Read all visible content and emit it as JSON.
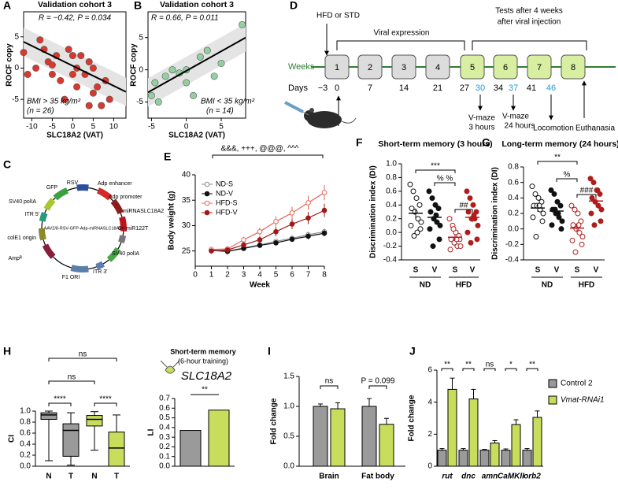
{
  "panel_labels": [
    "A",
    "B",
    "C",
    "D",
    "E",
    "F",
    "G",
    "H",
    "I",
    "J"
  ],
  "timeline": {
    "treatment": "HFD or STD",
    "phase1": "Viral expression",
    "phase2": [
      "Tests after 4 weeks",
      "after viral injection"
    ],
    "axis_label": "Weeks",
    "weeks": [
      "1",
      "2",
      "3",
      "4",
      "5",
      "6",
      "7",
      "8"
    ],
    "days_label": "Days",
    "days": [
      "−3",
      "0",
      "7",
      "14",
      "21",
      "27",
      "30",
      "34",
      "37",
      "41",
      "46"
    ],
    "events": [
      [
        "V-maze",
        "3 hours"
      ],
      [
        "V-maze",
        "24 hours"
      ],
      [
        "Locomotion"
      ],
      [
        "Euthanasia"
      ]
    ]
  },
  "plasmid": {
    "name": "AAV2/8-RSV-GFP-Adp-miRNASLC18A2",
    "elements": [
      "RSV",
      "GFP",
      "Adp enhancer",
      "Adp promoter",
      "miRNASLC18A2",
      "8× miR122T",
      "SV40 polIA",
      "ITR 3′",
      "F1 ORI",
      "Ampᴿ",
      "colE1 origin",
      "ITR 5′",
      "SV40 polIA"
    ]
  },
  "chart_data": [
    {
      "type": "scatter",
      "title": "Validation cohort 3",
      "annotations": [
        "R = −0.42, P = 0.034",
        "BMI > 35 kg/m²",
        "(n = 26)"
      ],
      "x_label": "SLC18A2 (VAT)",
      "y_label": "ROCF copy",
      "color": "#d9382e",
      "x": [
        -12,
        -11,
        -9,
        -8,
        -7,
        -6,
        -5,
        -5,
        -4,
        -3,
        -2,
        -1,
        0,
        0,
        1,
        1,
        2,
        3,
        4,
        4,
        5,
        5,
        6,
        7,
        8,
        9
      ],
      "values": [
        2.5,
        -1,
        0,
        4.5,
        3,
        1,
        -1,
        0.5,
        2,
        -2,
        -5,
        3,
        2,
        -1,
        0,
        -3,
        2,
        -1,
        1,
        -6,
        0,
        -4,
        -3,
        -6,
        -2,
        -5
      ],
      "trend": {
        "x": [
          -12,
          13
        ],
        "y": [
          4.2,
          -3.8
        ]
      },
      "xlim": [
        -12,
        13
      ],
      "ylim": [
        -8,
        9
      ],
      "xticks": [
        -10,
        -5,
        0,
        5,
        10
      ],
      "yticks": [
        -5,
        0,
        5
      ]
    },
    {
      "type": "scatter",
      "title": "Validation cohort 3",
      "annotations": [
        "R = 0.66, P = 0.011",
        "BMI < 35 kg/m²",
        "(n = 14)"
      ],
      "x_label": "SLC18A2 (VAT)",
      "y_label": "ROCF copy",
      "color": "#93cfa0",
      "x": [
        -5,
        -4.5,
        -4,
        -3,
        -2,
        -1,
        0,
        0,
        1,
        2,
        3,
        4,
        5,
        8
      ],
      "values": [
        -4,
        -2,
        -5,
        -1,
        0,
        -0.5,
        0,
        -2,
        -4,
        2,
        3,
        -1,
        1,
        7
      ],
      "trend": {
        "x": [
          -5.5,
          8.5
        ],
        "y": [
          -3.5,
          5
        ]
      },
      "xlim": [
        -5.5,
        8.5
      ],
      "ylim": [
        -7.5,
        9
      ],
      "xticks": [
        -5,
        0,
        5
      ],
      "yticks": [
        -5,
        0,
        5
      ]
    },
    {
      "type": "line",
      "annotations": [
        "&&&, +++, @@@, ^^^"
      ],
      "x_label": "Week",
      "y_label": "Body weight (g)",
      "x": [
        1,
        2,
        3,
        4,
        5,
        6,
        7,
        8
      ],
      "legend": "upper-left",
      "series": [
        {
          "name": "ND-S",
          "color": "#8a8a8a",
          "filled": false,
          "values": [
            25.2,
            25.0,
            25.6,
            26.2,
            26.9,
            27.5,
            28.2,
            28.8
          ],
          "errors": [
            0.3,
            0.3,
            0.4,
            0.4,
            0.5,
            0.5,
            0.6,
            0.6
          ]
        },
        {
          "name": "ND-V",
          "color": "#111111",
          "filled": true,
          "values": [
            25.1,
            24.9,
            25.5,
            26.1,
            26.6,
            27.3,
            27.9,
            28.5
          ],
          "errors": [
            0.3,
            0.3,
            0.4,
            0.4,
            0.5,
            0.5,
            0.6,
            0.6
          ]
        },
        {
          "name": "HFD-S",
          "color": "#e8645a",
          "filled": false,
          "values": [
            25.3,
            25.4,
            27.2,
            28.8,
            30.8,
            32.5,
            34.5,
            36.5
          ],
          "errors": [
            0.4,
            0.5,
            0.6,
            0.8,
            1.0,
            1.2,
            1.4,
            1.5
          ]
        },
        {
          "name": "HFD-V",
          "color": "#a01818",
          "filled": true,
          "values": [
            25.0,
            25.2,
            26.2,
            27.2,
            28.8,
            30.3,
            31.5,
            33.0
          ],
          "errors": [
            0.4,
            0.4,
            0.5,
            0.7,
            0.9,
            1.0,
            1.2,
            1.3
          ]
        }
      ],
      "xlim": [
        0,
        8
      ],
      "ylim": [
        22,
        40
      ],
      "xticks": [
        0,
        1,
        2,
        3,
        4,
        5,
        6,
        7,
        8
      ],
      "yticks": [
        25,
        30,
        35,
        40
      ]
    },
    {
      "type": "dot",
      "title": "Short-term memory (3 hours)",
      "y_label": "Discrimination index (DI)",
      "groups": [
        "ND",
        "HFD"
      ],
      "annotations": [
        "***",
        "% %",
        "##"
      ],
      "series": [
        {
          "name": "S",
          "color": "#111111",
          "filled": false,
          "values": [
            0.7,
            0.6,
            0.5,
            0.4,
            0.35,
            0.3,
            0.2,
            0.15,
            0.1,
            0.05,
            -0.05,
            0.0
          ],
          "mean": 0.28,
          "error": 0.07
        },
        {
          "name": "V",
          "color": "#111111",
          "filled": true,
          "values": [
            0.6,
            0.5,
            0.4,
            0.35,
            0.3,
            0.2,
            0.15,
            0.1,
            0.05,
            -0.1,
            -0.2,
            0.25
          ],
          "mean": 0.22,
          "error": 0.07
        },
        {
          "name": "S",
          "color": "#b01c1c",
          "filled": false,
          "values": [
            0.2,
            0.1,
            0.0,
            -0.05,
            -0.1,
            -0.15,
            -0.2,
            -0.2,
            -0.25,
            -0.1,
            0.05,
            -0.1
          ],
          "mean": -0.07,
          "error": 0.04
        },
        {
          "name": "V",
          "color": "#b01c1c",
          "filled": true,
          "values": [
            0.6,
            0.5,
            0.4,
            0.3,
            0.3,
            0.2,
            0.2,
            0.1,
            0.0,
            -0.1,
            -0.15,
            0.25
          ],
          "mean": 0.22,
          "error": 0.07
        }
      ],
      "ylim": [
        -0.4,
        1.0
      ],
      "yticks": [
        -0.4,
        -0.2,
        {
          "value": 0,
          "label": "0.0"
        },
        0.2,
        0.4,
        0.6,
        0.8,
        {
          "value": 1,
          "label": "1.0"
        }
      ]
    },
    {
      "type": "dot",
      "title": "Long-term memory (24 hours)",
      "y_label": "Discrimination index (DI)",
      "groups": [
        "ND",
        "HFD"
      ],
      "annotations": [
        "**",
        "%",
        "###"
      ],
      "series": [
        {
          "name": "S",
          "color": "#111111",
          "filled": false,
          "values": [
            0.55,
            0.45,
            0.4,
            0.35,
            0.3,
            0.3,
            0.25,
            0.2,
            0.15,
            0.1,
            -0.1,
            0.3
          ],
          "mean": 0.27,
          "error": 0.05
        },
        {
          "name": "V",
          "color": "#111111",
          "filled": true,
          "values": [
            0.5,
            0.45,
            0.35,
            0.3,
            0.25,
            0.2,
            0.15,
            0.1,
            0.05,
            0.0,
            0.25,
            0.2
          ],
          "mean": 0.23,
          "error": 0.05
        },
        {
          "name": "S",
          "color": "#b01c1c",
          "filled": false,
          "values": [
            0.3,
            0.25,
            0.2,
            0.1,
            0.05,
            0.0,
            -0.05,
            -0.1,
            -0.15,
            -0.2,
            -0.3,
            0.05
          ],
          "mean": 0.01,
          "error": 0.05
        },
        {
          "name": "V",
          "color": "#b01c1c",
          "filled": true,
          "values": [
            0.65,
            0.6,
            0.5,
            0.45,
            0.4,
            0.35,
            0.3,
            0.25,
            0.2,
            0.1,
            0.05,
            0.5
          ],
          "mean": 0.36,
          "error": 0.05
        }
      ],
      "ylim": [
        -0.4,
        0.8
      ],
      "yticks": [
        -0.4,
        -0.2,
        {
          "value": 0,
          "label": "0.0"
        },
        0.2,
        0.4,
        0.6,
        0.8
      ]
    },
    {
      "type": "box",
      "y_label": "CI",
      "categories": [
        "N",
        "T",
        "N",
        "T"
      ],
      "colors": [
        "#9a9a9a",
        "#9a9a9a",
        "#c9dd5c",
        "#c9dd5c"
      ],
      "min": [
        0.1,
        0.02,
        0.29,
        0.0
      ],
      "q1": [
        0.85,
        0.18,
        0.73,
        0.0
      ],
      "median": [
        0.93,
        0.65,
        0.85,
        0.33
      ],
      "q3": [
        0.97,
        0.77,
        0.92,
        0.62
      ],
      "max": [
        1.0,
        0.97,
        0.99,
        0.93
      ],
      "annotations": [
        "ns",
        "ns",
        "****",
        "****"
      ],
      "ylim": [
        0,
        1
      ],
      "yticks": [
        {
          "value": 0,
          "label": "0.0"
        },
        0.2,
        0.4,
        0.6,
        0.8,
        {
          "value": 1,
          "label": "1.0"
        }
      ]
    },
    {
      "type": "bar",
      "title": "Short-term memory",
      "subtitle": "(6-hour training)",
      "gene": "SLC18A2",
      "y_label": "LI",
      "values": [
        0.37,
        0.58
      ],
      "colors": [
        "#9a9a9a",
        "#c9dd5c"
      ],
      "annotations": [
        "**"
      ],
      "ylim": [
        0,
        0.7
      ],
      "yticks": [
        {
          "value": 0,
          "label": "0.0"
        },
        0.1,
        0.2,
        0.3,
        0.4,
        0.5,
        0.6,
        0.7
      ]
    },
    {
      "type": "bar",
      "y_label": "Fold change",
      "categories": [
        "Brain",
        "Fat body"
      ],
      "series": [
        {
          "color": "#9a9a9a",
          "values": [
            1.0,
            1.0
          ],
          "errors": [
            0.04,
            0.13
          ]
        },
        {
          "color": "#c9dd5c",
          "values": [
            0.96,
            0.7
          ],
          "errors": [
            0.1,
            0.1
          ]
        }
      ],
      "annotations": [
        "ns",
        "P = 0.099"
      ],
      "ylim": [
        0,
        1.5
      ],
      "yticks": [
        {
          "value": 0,
          "label": "0.0"
        },
        0.5,
        {
          "value": 1,
          "label": "1.0"
        },
        1.5
      ]
    },
    {
      "type": "bar",
      "y_label": "Fold change",
      "categories": [
        "rut",
        "dnc",
        "amn",
        "CaMKII",
        "orb2"
      ],
      "legend": "right",
      "series": [
        {
          "name": "Control 2",
          "color": "#9a9a9a",
          "values": [
            1.0,
            1.0,
            1.0,
            1.0,
            1.0
          ],
          "errors": [
            0.1,
            0.1,
            0.05,
            0.08,
            0.1
          ]
        },
        {
          "name": "Vmat-RNAi1",
          "color": "#c9dd5c",
          "values": [
            4.8,
            4.2,
            1.45,
            2.6,
            3.05
          ],
          "errors": [
            0.7,
            0.6,
            0.15,
            0.3,
            0.4
          ]
        }
      ],
      "annotations": [
        "**",
        "**",
        "ns",
        "*",
        "**"
      ],
      "ylim": [
        0,
        6
      ],
      "yticks": [
        0,
        2,
        4,
        6
      ]
    }
  ]
}
